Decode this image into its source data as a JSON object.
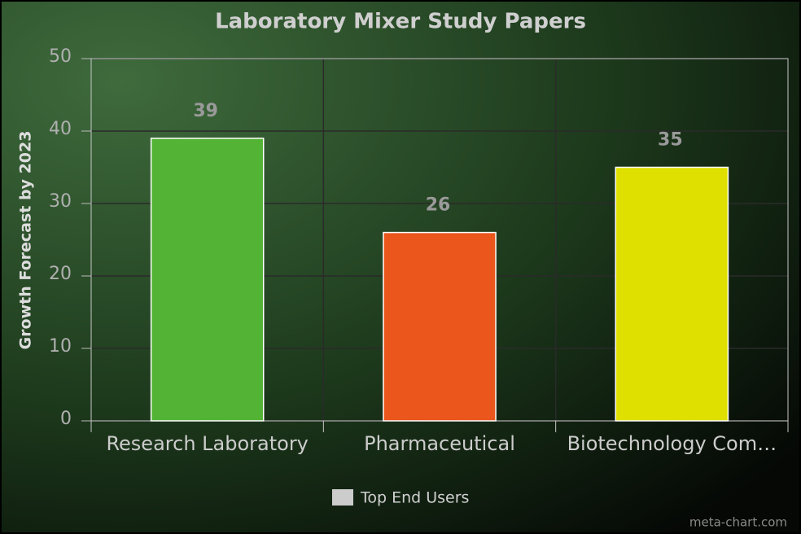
{
  "chart_data": {
    "type": "bar",
    "title": "Laboratory Mixer Study Papers",
    "y_label": "Growth Forecast by 2023",
    "categories": [
      "Research Laboratory",
      "Pharmaceutical",
      "Biotechnology Com…"
    ],
    "series": [
      {
        "name": "Top End Users",
        "color": "#cccccc",
        "values": [
          39,
          26,
          35
        ]
      }
    ],
    "colors": [
      "#52b334",
      "#ea561c",
      "#dfe000"
    ],
    "ylim": [
      0,
      50
    ],
    "yticks": [
      0,
      10,
      20,
      30,
      40,
      50
    ],
    "grid": true,
    "watermark": "meta-chart.com"
  }
}
